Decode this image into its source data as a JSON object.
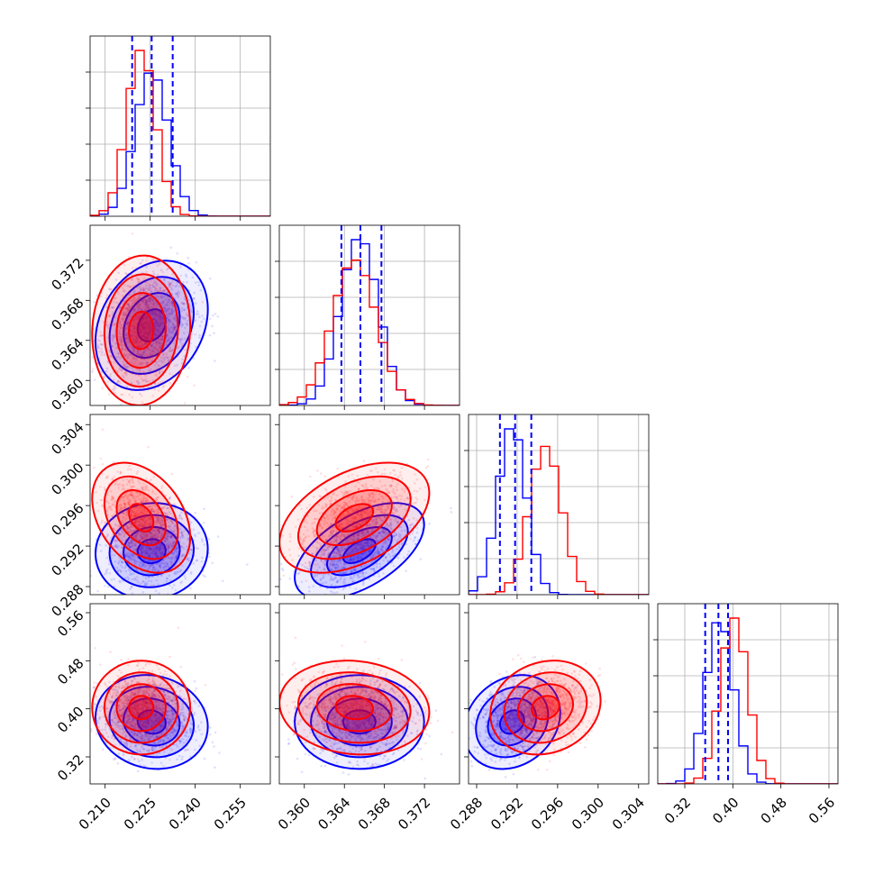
{
  "chart_data": {
    "type": "corner",
    "description_free": true,
    "n_params": 4,
    "colors": {
      "series_a": "#0000ff",
      "series_b": "#ff0000",
      "grid": "#b0b0b0"
    },
    "series": [
      {
        "name": "blue",
        "color": "#0000ff",
        "means": [
          0.2255,
          0.3655,
          0.2915,
          0.378
        ],
        "sds": [
          0.0055,
          0.0019,
          0.0014,
          0.023
        ],
        "corr": {
          "1-0": 0.25,
          "2-0": 0.05,
          "2-1": 0.55,
          "3-0": -0.1,
          "3-1": 0.0,
          "3-2": 0.2
        },
        "quantiles": [
          [
            0.219,
            0.2255,
            0.2325
          ],
          [
            0.3637,
            0.3656,
            0.3677
          ],
          [
            0.2903,
            0.2918,
            0.2934
          ],
          [
            0.354,
            0.376,
            0.392
          ]
        ]
      },
      {
        "name": "red",
        "color": "#ff0000",
        "means": [
          0.222,
          0.365,
          0.2948,
          0.402
        ],
        "sds": [
          0.0048,
          0.0022,
          0.0016,
          0.023
        ],
        "corr": {
          "1-0": 0.05,
          "2-0": -0.35,
          "2-1": 0.45,
          "3-0": 0.0,
          "3-1": -0.1,
          "3-2": 0.15
        },
        "quantiles": []
      }
    ],
    "axes": [
      {
        "range": [
          0.205,
          0.265
        ],
        "ticks": [
          0.21,
          0.225,
          0.24,
          0.255
        ],
        "labels": [
          "0.210",
          "0.225",
          "0.240",
          "0.255"
        ]
      },
      {
        "range": [
          0.3575,
          0.3755
        ],
        "ticks": [
          0.36,
          0.364,
          0.368,
          0.372
        ],
        "labels": [
          "0.360",
          "0.364",
          "0.368",
          "0.372"
        ]
      },
      {
        "range": [
          0.2872,
          0.305
        ],
        "ticks": [
          0.288,
          0.292,
          0.296,
          0.3,
          0.304
        ],
        "labels": [
          "0.288",
          "0.292",
          "0.296",
          "0.300",
          "0.304"
        ]
      },
      {
        "range": [
          0.275,
          0.575
        ],
        "ticks": [
          0.32,
          0.4,
          0.48,
          0.56
        ],
        "labels": [
          "0.32",
          "0.40",
          "0.48",
          "0.56"
        ]
      }
    ],
    "histogram_bins": 20,
    "contour_levels_sigma": [
      0.5,
      1.0,
      1.5,
      2.0
    ],
    "title": "",
    "xlabel": "",
    "ylabel": "",
    "grid": true,
    "legend": "none"
  }
}
